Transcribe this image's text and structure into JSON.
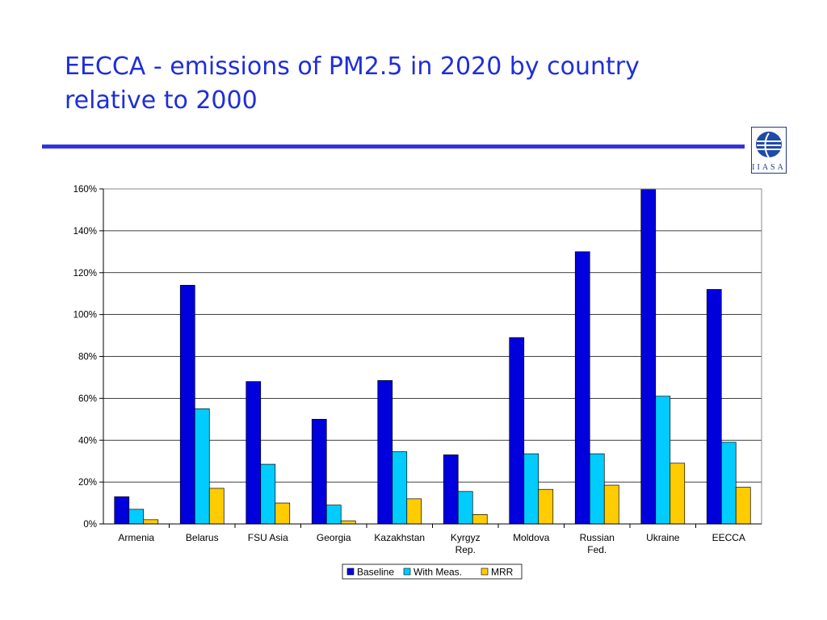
{
  "slide": {
    "title_line1": "EECCA - emissions of PM2.5 in 2020 by country",
    "title_line2": "relative to 2000",
    "logo_text": "IIASA"
  },
  "colors": {
    "title": "#1f2fd8",
    "rule": "#3333dd",
    "baseline": "#0000dd",
    "with_meas": "#00ccff",
    "mrr": "#ffcc00"
  },
  "chart_data": {
    "type": "bar",
    "title": "",
    "xlabel": "",
    "ylabel": "",
    "ylim": [
      0,
      160
    ],
    "yticks": [
      "0%",
      "20%",
      "40%",
      "60%",
      "80%",
      "100%",
      "120%",
      "140%",
      "160%"
    ],
    "grid": true,
    "legend_position": "bottom",
    "categories": [
      [
        "Armenia"
      ],
      [
        "Belarus"
      ],
      [
        "FSU Asia"
      ],
      [
        "Georgia"
      ],
      [
        "Kazakhstan"
      ],
      [
        "Kyrgyz",
        "Rep."
      ],
      [
        "Moldova"
      ],
      [
        "Russian",
        "Fed."
      ],
      [
        "Ukraine"
      ],
      [
        "EECCA"
      ]
    ],
    "series": [
      {
        "name": "Baseline",
        "color": "#0000dd",
        "values": [
          13,
          114,
          68,
          50,
          68.5,
          33,
          89,
          130,
          160,
          112
        ]
      },
      {
        "name": "With Meas.",
        "color": "#00ccff",
        "values": [
          7,
          55,
          28.5,
          9,
          34.5,
          15.5,
          33.5,
          33.5,
          61,
          39
        ]
      },
      {
        "name": "MRR",
        "color": "#ffcc00",
        "values": [
          2,
          17,
          10,
          1.5,
          12,
          4.5,
          16.5,
          18.5,
          29,
          17.5
        ]
      }
    ]
  }
}
